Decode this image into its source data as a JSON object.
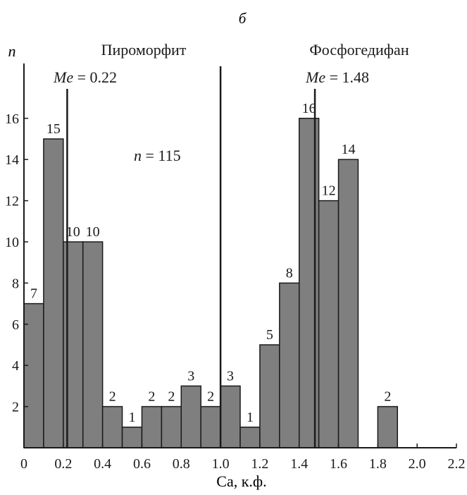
{
  "panel_label": "б",
  "chart_data": {
    "type": "bar",
    "title": "",
    "xlabel": "Ca, к.ф.",
    "ylabel": "n",
    "xlim": [
      0,
      2.2
    ],
    "ylim": [
      0,
      18
    ],
    "grid": false,
    "bins": [
      {
        "x0": 0.0,
        "x1": 0.1,
        "value": 7
      },
      {
        "x0": 0.1,
        "x1": 0.2,
        "value": 15
      },
      {
        "x0": 0.2,
        "x1": 0.3,
        "value": 10
      },
      {
        "x0": 0.3,
        "x1": 0.4,
        "value": 10
      },
      {
        "x0": 0.4,
        "x1": 0.5,
        "value": 2
      },
      {
        "x0": 0.5,
        "x1": 0.6,
        "value": 1
      },
      {
        "x0": 0.6,
        "x1": 0.7,
        "value": 2
      },
      {
        "x0": 0.7,
        "x1": 0.8,
        "value": 2
      },
      {
        "x0": 0.8,
        "x1": 0.9,
        "value": 3
      },
      {
        "x0": 0.9,
        "x1": 1.0,
        "value": 2
      },
      {
        "x0": 1.0,
        "x1": 1.1,
        "value": 3
      },
      {
        "x0": 1.1,
        "x1": 1.2,
        "value": 1
      },
      {
        "x0": 1.2,
        "x1": 1.3,
        "value": 5
      },
      {
        "x0": 1.3,
        "x1": 1.4,
        "value": 8
      },
      {
        "x0": 1.4,
        "x1": 1.5,
        "value": 16
      },
      {
        "x0": 1.5,
        "x1": 1.6,
        "value": 12
      },
      {
        "x0": 1.6,
        "x1": 1.7,
        "value": 14
      },
      {
        "x0": 1.8,
        "x1": 1.9,
        "value": 2
      }
    ],
    "x_ticks": [
      {
        "value": 0,
        "label": "0"
      },
      {
        "value": 0.2,
        "label": "0.2"
      },
      {
        "value": 0.4,
        "label": "0.4"
      },
      {
        "value": 0.6,
        "label": "0.6"
      },
      {
        "value": 0.8,
        "label": "0.8"
      },
      {
        "value": 1.0,
        "label": "1.0"
      },
      {
        "value": 1.2,
        "label": "1.2"
      },
      {
        "value": 1.4,
        "label": "1.4"
      },
      {
        "value": 1.6,
        "label": "1.6"
      },
      {
        "value": 1.8,
        "label": "1.8"
      },
      {
        "value": 2.0,
        "label": "2.0"
      },
      {
        "value": 2.2,
        "label": "2.2"
      }
    ],
    "y_ticks": [
      {
        "value": 2,
        "label": "2"
      },
      {
        "value": 4,
        "label": "4"
      },
      {
        "value": 6,
        "label": "6"
      },
      {
        "value": 8,
        "label": "8"
      },
      {
        "value": 10,
        "label": "10"
      },
      {
        "value": 12,
        "label": "12"
      },
      {
        "value": 14,
        "label": "14"
      },
      {
        "value": 16,
        "label": "16"
      }
    ],
    "divider_x": 1.0,
    "groups": [
      {
        "name": "Пироморфит",
        "median_x": 0.22,
        "median_label": "Me",
        "median_value": "0.22"
      },
      {
        "name": "Фосфогедифан",
        "median_x": 1.48,
        "median_label": "Me",
        "median_value": "1.48"
      }
    ],
    "total_label": "n",
    "total_value": "115"
  },
  "colors": {
    "bar_fill": "#7f7f7f",
    "bar_stroke": "#1a1a1a",
    "axis": "#1a1a1a",
    "text": "#1a1a1a"
  }
}
